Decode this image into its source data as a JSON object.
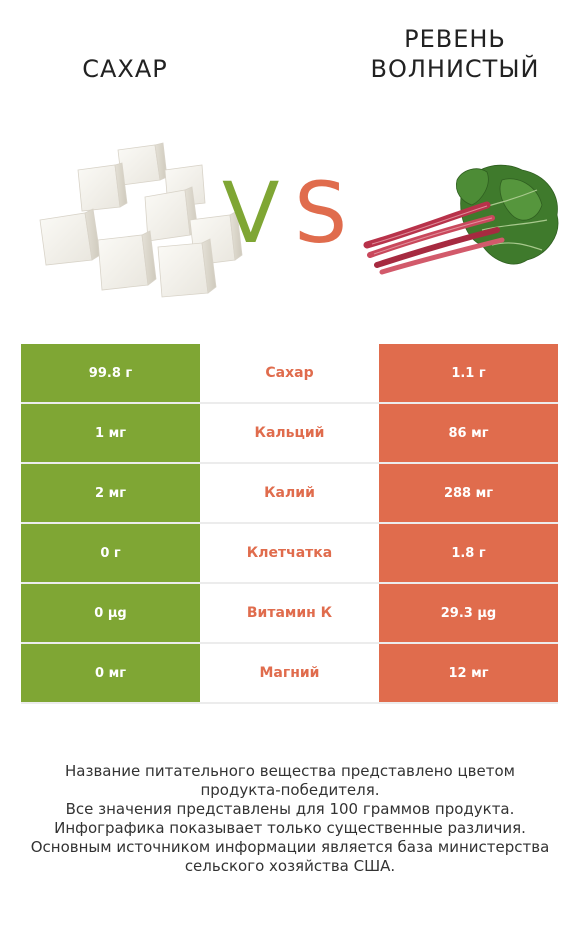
{
  "left_product": {
    "name": "САХАР",
    "color": "#7fa634"
  },
  "right_product": {
    "name_line1": "РЕВЕНЬ",
    "name_line2": "ВОЛНИСТЫЙ",
    "color": "#e06c4d"
  },
  "vs": {
    "v": "V",
    "s": "S"
  },
  "rows": [
    {
      "left": "99.8 г",
      "label": "Сахар",
      "right": "1.1 г"
    },
    {
      "left": "1 мг",
      "label": "Кальций",
      "right": "86 мг"
    },
    {
      "left": "2 мг",
      "label": "Калий",
      "right": "288 мг"
    },
    {
      "left": "0 г",
      "label": "Клетчатка",
      "right": "1.8 г"
    },
    {
      "left": "0 µg",
      "label": "Витамин К",
      "right": "29.3 µg"
    },
    {
      "left": "0 мг",
      "label": "Магний",
      "right": "12 мг"
    }
  ],
  "footer": {
    "line1": "Название питательного вещества представлено цветом",
    "line2": "продукта-победителя.",
    "line3": "Все значения представлены для 100 граммов продукта.",
    "line4": "Инфографика показывает только существенные различия.",
    "line5": "Основным источником информации является база министерства",
    "line6": "сельского хозяйства США."
  },
  "icons": {
    "left_image": "sugar-cubes-image",
    "right_image": "rhubarb-image"
  }
}
